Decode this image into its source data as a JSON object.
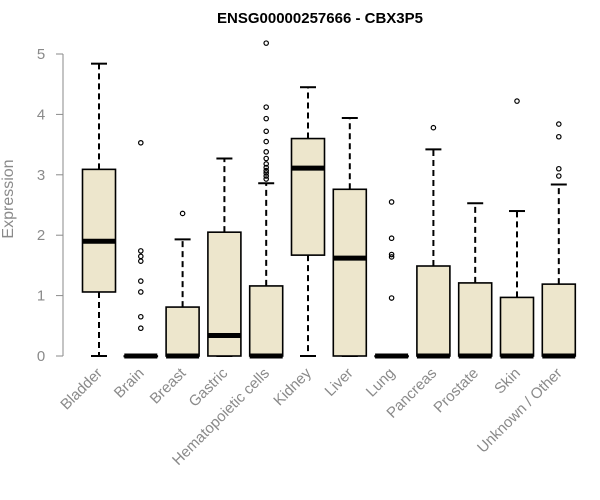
{
  "chart_data": {
    "type": "boxplot",
    "title": "ENSG00000257666 - CBX3P5",
    "xlabel": "",
    "ylabel": "Expression",
    "ylim": [
      0,
      5.2
    ],
    "yticks": [
      0,
      1,
      2,
      3,
      4,
      5
    ],
    "grid": false,
    "box_fill": "#ede6cc",
    "categories": [
      "Bladder",
      "Brain",
      "Breast",
      "Gastric",
      "Hematopoietic cells",
      "Kidney",
      "Liver",
      "Lung",
      "Pancreas",
      "Prostate",
      "Skin",
      "Unknown / Other"
    ],
    "boxes": [
      {
        "category": "Bladder",
        "whisker_low": 0,
        "q1": 1.06,
        "median": 1.9,
        "q3": 3.09,
        "whisker_high": 4.84,
        "outliers": []
      },
      {
        "category": "Brain",
        "whisker_low": 0,
        "q1": 0,
        "median": 0,
        "q3": 0,
        "whisker_high": 0,
        "outliers": [
          3.53,
          1.74,
          1.65,
          1.57,
          1.24,
          1.06,
          0.65,
          0.46
        ]
      },
      {
        "category": "Breast",
        "whisker_low": 0,
        "q1": 0,
        "median": 0,
        "q3": 0.81,
        "whisker_high": 1.93,
        "outliers": [
          2.36
        ]
      },
      {
        "category": "Gastric",
        "whisker_low": 0,
        "q1": 0,
        "median": 0.34,
        "q3": 2.05,
        "whisker_high": 3.27,
        "outliers": []
      },
      {
        "category": "Hematopoietic cells",
        "whisker_low": 0,
        "q1": 0,
        "median": 0,
        "q3": 1.16,
        "whisker_high": 2.86,
        "outliers": [
          5.18,
          4.12,
          3.93,
          3.72,
          3.55,
          3.38,
          3.27,
          3.18,
          3.12,
          3.07,
          3.03,
          2.98,
          2.93
        ]
      },
      {
        "category": "Kidney",
        "whisker_low": 0,
        "q1": 1.67,
        "median": 3.11,
        "q3": 3.6,
        "whisker_high": 4.45,
        "outliers": []
      },
      {
        "category": "Liver",
        "whisker_low": 0,
        "q1": 0,
        "median": 1.62,
        "q3": 2.76,
        "whisker_high": 3.94,
        "outliers": []
      },
      {
        "category": "Lung",
        "whisker_low": 0,
        "q1": 0,
        "median": 0,
        "q3": 0,
        "whisker_high": 0,
        "outliers": [
          2.55,
          1.95,
          1.68,
          1.64,
          0.96
        ]
      },
      {
        "category": "Pancreas",
        "whisker_low": 0,
        "q1": 0,
        "median": 0,
        "q3": 1.49,
        "whisker_high": 3.42,
        "outliers": [
          3.78
        ]
      },
      {
        "category": "Prostate",
        "whisker_low": 0,
        "q1": 0,
        "median": 0,
        "q3": 1.21,
        "whisker_high": 2.53,
        "outliers": []
      },
      {
        "category": "Skin",
        "whisker_low": 0,
        "q1": 0,
        "median": 0,
        "q3": 0.97,
        "whisker_high": 2.4,
        "outliers": [
          4.22
        ]
      },
      {
        "category": "Unknown / Other",
        "whisker_low": 0,
        "q1": 0,
        "median": 0,
        "q3": 1.19,
        "whisker_high": 2.84,
        "outliers": [
          3.84,
          3.63,
          3.1,
          2.98
        ]
      }
    ]
  }
}
